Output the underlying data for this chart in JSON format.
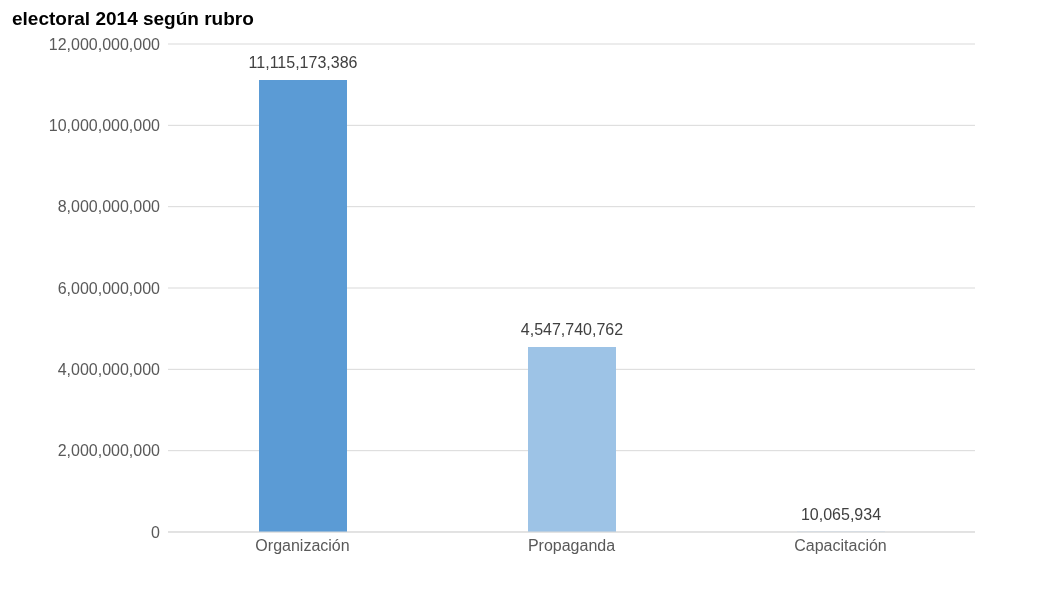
{
  "chart_data": {
    "type": "bar",
    "title": "electoral 2014 según rubro",
    "categories": [
      "Organización",
      "Propaganda",
      "Capacitación"
    ],
    "values": [
      11115173386,
      4547740762,
      10065934
    ],
    "colors": [
      "#5b9bd5",
      "#9dc3e6",
      "#bdd7ee"
    ],
    "value_labels": [
      "11,115,173,386",
      "4,547,740,762",
      "10,065,934"
    ],
    "ylim": [
      0,
      12000000000
    ],
    "yticks": [
      0,
      {
        "value": 2000000000,
        "label": "2,000,000,000"
      },
      {
        "value": 4000000000,
        "label": "4,000,000,000"
      },
      {
        "value": 6000000000,
        "label": "6,000,000,000"
      },
      {
        "value": 8000000000,
        "label": "8,000,000,000"
      },
      {
        "value": 10000000000,
        "label": "10,000,000,000"
      },
      {
        "value": 12000000000,
        "label": "12,000,000,000"
      }
    ],
    "grid": "y"
  }
}
